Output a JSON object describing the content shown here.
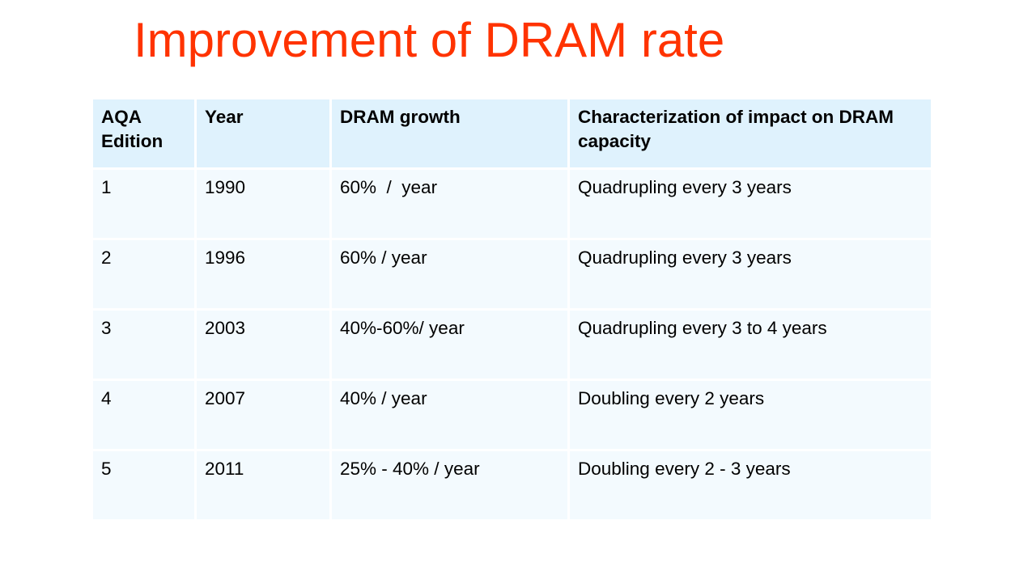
{
  "slide": {
    "title": "Improvement of DRAM rate"
  },
  "table": {
    "headers": [
      "AQA Edition",
      "Year",
      "DRAM growth",
      "Characterization of impact on DRAM capacity"
    ],
    "rows": [
      [
        "1",
        "1990",
        "60%  /  year",
        "Quadrupling every 3 years"
      ],
      [
        "2",
        "1996",
        "60% / year",
        "Quadrupling every 3 years"
      ],
      [
        "3",
        "2003",
        "40%-60%/ year",
        "Quadrupling every 3 to 4 years"
      ],
      [
        "4",
        "2007",
        "40% / year",
        "Doubling every 2 years"
      ],
      [
        "5",
        "2011",
        "25% - 40% / year",
        "Doubling every 2 - 3 years"
      ]
    ]
  },
  "colors": {
    "title": "#ff3300",
    "header_bg": "#dff2fd",
    "cell_bg": "#f3fafe"
  }
}
